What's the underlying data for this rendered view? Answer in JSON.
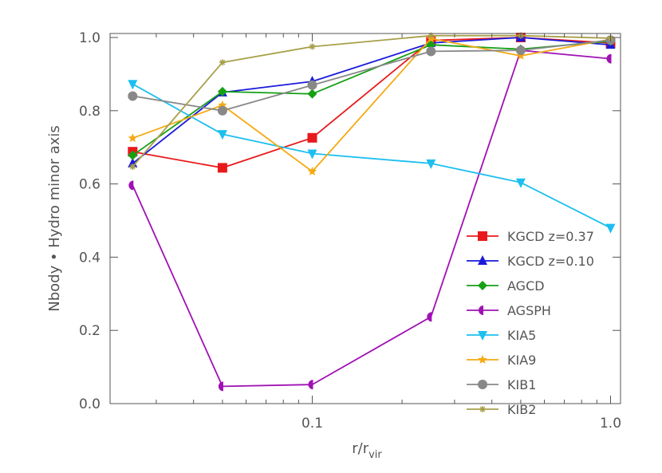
{
  "chart_data": {
    "type": "line",
    "x_scale": "log",
    "xlabel_main": "r/r",
    "xlabel_sub": "vir",
    "ylabel": "Nbody • Hydro minor axis",
    "xlim": [
      0.021,
      1.08
    ],
    "ylim": [
      0.0,
      1.0
    ],
    "x_ticks": [
      0.1,
      1.0
    ],
    "x_tick_labels": [
      "0.1",
      "1.0"
    ],
    "y_ticks": [
      0.0,
      0.2,
      0.4,
      0.6,
      0.8,
      1.0
    ],
    "y_tick_labels": [
      "0.0",
      "0.2",
      "0.4",
      "0.6",
      "0.8",
      "1.0"
    ],
    "grid": false,
    "legend_position": "right-lower",
    "x": [
      0.025,
      0.05,
      0.1,
      0.25,
      0.5,
      1.0
    ],
    "series": [
      {
        "name": "KGCD z=0.37",
        "color": "#e8191b",
        "marker": "square",
        "values": [
          0.688,
          0.644,
          0.726,
          0.992,
          1.0,
          0.985
        ]
      },
      {
        "name": "KGCD z=0.10",
        "color": "#1a1adb",
        "marker": "triangle-up",
        "values": [
          0.656,
          0.85,
          0.88,
          0.985,
          1.0,
          0.98
        ]
      },
      {
        "name": "AGCD",
        "color": "#16a016",
        "marker": "diamond",
        "values": [
          0.678,
          0.852,
          0.846,
          0.98,
          0.968,
          0.99
        ]
      },
      {
        "name": "AGSPH",
        "color": "#a010b4",
        "marker": "half-circle",
        "values": [
          0.596,
          0.047,
          0.052,
          0.237,
          0.965,
          0.942
        ]
      },
      {
        "name": "KIA5",
        "color": "#1cbff0",
        "marker": "triangle-down",
        "values": [
          0.873,
          0.736,
          0.683,
          0.656,
          0.604,
          0.48
        ]
      },
      {
        "name": "KIA9",
        "color": "#f5a912",
        "marker": "star",
        "values": [
          0.725,
          0.815,
          0.634,
          0.997,
          0.95,
          0.995
        ]
      },
      {
        "name": "KIB1",
        "color": "#888888",
        "marker": "circle",
        "values": [
          0.84,
          0.8,
          0.87,
          0.962,
          0.965,
          0.993
        ]
      },
      {
        "name": "KIB2",
        "color": "#a8a04a",
        "marker": "asterisk",
        "values": [
          0.647,
          0.932,
          0.975,
          1.005,
          1.005,
          0.998
        ]
      }
    ]
  }
}
